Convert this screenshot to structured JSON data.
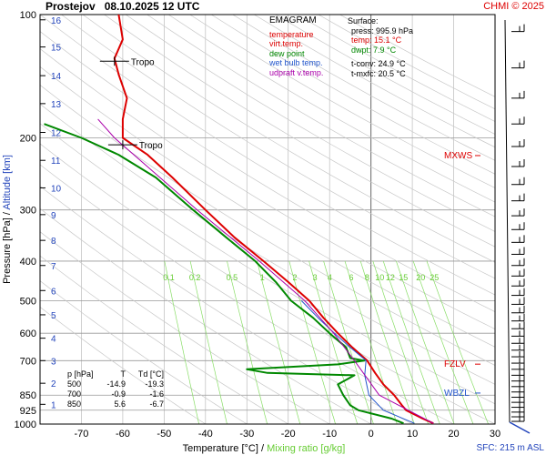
{
  "header": {
    "station": "Prostejov",
    "datetime": "08.10.2025 12 UTC",
    "copyright": "CHMI © 2025"
  },
  "legend": {
    "title": "EMAGRAM",
    "items": [
      {
        "label": "temperature",
        "color": "#dd0000"
      },
      {
        "label": "virt.temp.",
        "color": "#dd0000"
      },
      {
        "label": "dew point",
        "color": "#008800"
      },
      {
        "label": "wet bulb temp.",
        "color": "#2255cc"
      },
      {
        "label": "udpraft v.temp.",
        "color": "#aa00aa"
      }
    ]
  },
  "surface": {
    "title": "Surface:",
    "press": "press: 995.9 hPa",
    "temp": "temp: 15.1 °C",
    "dwpt": "dwpt: 7.9 °C",
    "tconv": "t-conv: 24.9 °C",
    "tmxfc": "t-mxfc: 20.5 °C"
  },
  "levels_table": {
    "header": [
      "p [hPa]",
      "T",
      "Td [°C]"
    ],
    "rows": [
      [
        "500",
        "-14.9",
        "-19.3"
      ],
      [
        "700",
        "-0.9",
        "-1.6"
      ],
      [
        "850",
        "5.6",
        "-6.7"
      ]
    ]
  },
  "markers": {
    "tropo1": "Tropo",
    "tropo2": "Tropo",
    "mxws": "MXWS",
    "fzlv": "FZLV",
    "wbzl": "WBZL"
  },
  "footer": {
    "sfc": "SFC: 215 m ASL"
  },
  "chart_data": {
    "type": "line",
    "title": "Prostejov 08.10.2025 12 UTC",
    "xlabel": "Temperature [°C]",
    "xlabel_secondary": "Mixing ratio [g/kg]",
    "ylabel": "Pressure [hPa]",
    "ylabel_secondary": "Altitude [km]",
    "xlim": [
      -80,
      30
    ],
    "ylim": [
      1000,
      100
    ],
    "x_ticks": [
      -70,
      -60,
      -50,
      -40,
      -30,
      -20,
      -10,
      0,
      10,
      20,
      30
    ],
    "pressure_ticks": [
      100,
      200,
      300,
      400,
      500,
      600,
      700,
      850,
      925,
      1000
    ],
    "altitude_ticks": [
      {
        "km": 1,
        "p": 895
      },
      {
        "km": 2,
        "p": 795
      },
      {
        "km": 3,
        "p": 700
      },
      {
        "km": 4,
        "p": 617
      },
      {
        "km": 5,
        "p": 541
      },
      {
        "km": 6,
        "p": 472
      },
      {
        "km": 7,
        "p": 410
      },
      {
        "km": 8,
        "p": 356
      },
      {
        "km": 9,
        "p": 308
      },
      {
        "km": 10,
        "p": 265
      },
      {
        "km": 11,
        "p": 227
      },
      {
        "km": 12,
        "p": 194
      },
      {
        "km": 13,
        "p": 165
      },
      {
        "km": 14,
        "p": 141
      },
      {
        "km": 15,
        "p": 120
      },
      {
        "km": 16,
        "p": 103
      }
    ],
    "mixing_ratio_labels": [
      "0.1",
      "0.2",
      "0.5",
      "1",
      "2",
      "3",
      "4",
      "6",
      "8",
      "10",
      "12",
      "15",
      "20",
      "25"
    ],
    "mixing_ratio_values": [
      0.1,
      0.2,
      0.5,
      1,
      2,
      3,
      4,
      6,
      8,
      10,
      12,
      15,
      20,
      25
    ],
    "mixing_ratio_label_p": 450,
    "series": [
      {
        "name": "temperature",
        "color": "#dd0000",
        "points": [
          [
            995.9,
            15.1
          ],
          [
            970,
            12.5
          ],
          [
            925,
            8.5
          ],
          [
            900,
            7.5
          ],
          [
            850,
            5.6
          ],
          [
            800,
            3.0
          ],
          [
            750,
            1.0
          ],
          [
            700,
            -0.9
          ],
          [
            650,
            -4.5
          ],
          [
            600,
            -8.0
          ],
          [
            550,
            -11.5
          ],
          [
            500,
            -14.9
          ],
          [
            450,
            -20
          ],
          [
            400,
            -26
          ],
          [
            350,
            -33
          ],
          [
            300,
            -40
          ],
          [
            250,
            -48
          ],
          [
            220,
            -54
          ],
          [
            200,
            -60
          ],
          [
            180,
            -60
          ],
          [
            160,
            -59
          ],
          [
            140,
            -61
          ],
          [
            128,
            -62
          ],
          [
            115,
            -60
          ],
          [
            100,
            -61
          ]
        ]
      },
      {
        "name": "dew point",
        "color": "#008800",
        "points": [
          [
            995.9,
            7.9
          ],
          [
            970,
            5.0
          ],
          [
            925,
            -3.0
          ],
          [
            900,
            -5.0
          ],
          [
            850,
            -6.7
          ],
          [
            800,
            -8.0
          ],
          [
            760,
            -4.0
          ],
          [
            750,
            -25
          ],
          [
            735,
            -30
          ],
          [
            715,
            -8
          ],
          [
            700,
            -1.6
          ],
          [
            690,
            -5
          ],
          [
            650,
            -6
          ],
          [
            600,
            -10
          ],
          [
            550,
            -14
          ],
          [
            500,
            -19.3
          ],
          [
            450,
            -23
          ],
          [
            400,
            -28
          ],
          [
            350,
            -35
          ],
          [
            300,
            -43
          ],
          [
            250,
            -52
          ],
          [
            220,
            -61
          ],
          [
            200,
            -70
          ],
          [
            185,
            -79
          ]
        ]
      },
      {
        "name": "wet bulb temp.",
        "color": "#2255cc",
        "points": [
          [
            995.9,
            10.5
          ],
          [
            925,
            3.0
          ],
          [
            850,
            -0.5
          ],
          [
            760,
            -1.5
          ],
          [
            700,
            -1.2
          ],
          [
            650,
            -5.0
          ],
          [
            600,
            -8.8
          ],
          [
            550,
            -12.8
          ],
          [
            500,
            -16.8
          ]
        ]
      },
      {
        "name": "udpraft v.temp.",
        "color": "#aa00aa",
        "points": [
          [
            995.9,
            15.1
          ],
          [
            850,
            2.0
          ],
          [
            700,
            -4.0
          ],
          [
            600,
            -9.0
          ],
          [
            500,
            -16.0
          ],
          [
            400,
            -27.0
          ],
          [
            300,
            -42.0
          ],
          [
            250,
            -51.0
          ],
          [
            200,
            -62.0
          ],
          [
            180,
            -66.0
          ]
        ]
      }
    ],
    "tropopause_p": [
      130,
      208
    ],
    "mxws_p": 221,
    "fzlv_p": 714,
    "wbzl_p": 840
  }
}
